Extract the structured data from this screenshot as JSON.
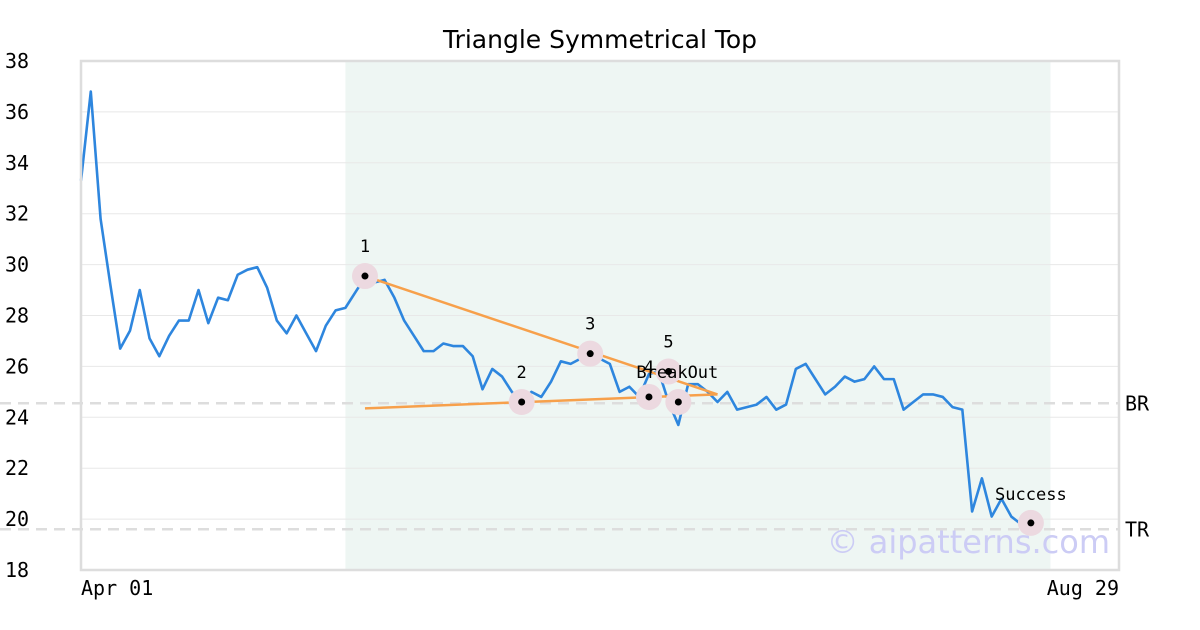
{
  "watermark": "© aipatterns.com",
  "colors": {
    "price_line": "#2e86de",
    "trend_line": "#f7a04b",
    "pattern_zone": "#eef6f3",
    "level_line": "#dddddd",
    "marker_ring": "#ecd9e0",
    "axis": "#dddddd",
    "watermark": "#ccccf5"
  },
  "chart_data": {
    "type": "line",
    "title": "Triangle Symmetrical Top",
    "xlabel": "",
    "ylabel": "",
    "x_tick_labels": [
      "Apr 01",
      "Aug 29"
    ],
    "x_range": [
      0,
      106
    ],
    "ylim": [
      18,
      38
    ],
    "y_ticks": [
      18,
      20,
      22,
      24,
      26,
      28,
      30,
      32,
      34,
      36,
      38
    ],
    "grid": true,
    "pattern_zone": [
      27,
      99
    ],
    "series": [
      {
        "values": [
          33.3,
          36.8,
          31.8,
          29.2,
          26.7,
          27.4,
          29.0,
          27.1,
          26.4,
          27.2,
          27.8,
          27.8,
          29.0,
          27.7,
          28.7,
          28.6,
          29.6,
          29.8,
          29.9,
          29.1,
          27.8,
          27.3,
          28.0,
          27.3,
          26.6,
          27.6,
          28.2,
          28.3,
          28.9,
          29.5,
          29.3,
          29.4,
          28.7,
          27.8,
          27.2,
          26.6,
          26.6,
          26.9,
          26.8,
          26.8,
          26.4,
          25.1,
          25.9,
          25.6,
          25.0,
          24.6,
          25.0,
          24.8,
          25.4,
          26.2,
          26.1,
          26.3,
          26.5,
          26.3,
          26.1,
          25.0,
          25.2,
          24.8,
          25.7,
          25.8,
          24.6,
          23.7,
          25.3,
          25.3,
          25.0,
          24.6,
          25.0,
          24.3,
          24.4,
          24.5,
          24.8,
          24.3,
          24.5,
          25.9,
          26.1,
          25.5,
          24.9,
          25.2,
          25.6,
          25.4,
          25.5,
          26.0,
          25.5,
          25.5,
          24.3,
          24.6,
          24.9,
          24.9,
          24.8,
          24.4,
          24.3,
          20.3,
          21.6,
          20.1,
          20.8,
          20.1,
          19.8,
          19.8,
          19.8
        ]
      }
    ],
    "pivots": [
      {
        "label": "1",
        "x": 29,
        "y": 29.55
      },
      {
        "label": "2",
        "x": 45,
        "y": 24.6
      },
      {
        "label": "3",
        "x": 52,
        "y": 26.5
      },
      {
        "label": "4",
        "x": 58,
        "y": 24.8
      },
      {
        "label": "5",
        "x": 60,
        "y": 25.8
      }
    ],
    "breakout": {
      "label": "BreakOut",
      "x": 61,
      "y": 24.6
    },
    "success": {
      "label": "Success",
      "x": 97,
      "y": 19.85
    },
    "trend_lines": [
      {
        "from": [
          29,
          29.55
        ],
        "to": [
          65,
          24.9
        ]
      },
      {
        "from": [
          29,
          24.35
        ],
        "to": [
          65,
          24.9
        ]
      }
    ],
    "levels": [
      {
        "label": "BR",
        "y": 24.55
      },
      {
        "label": "TR",
        "y": 19.6
      }
    ]
  }
}
